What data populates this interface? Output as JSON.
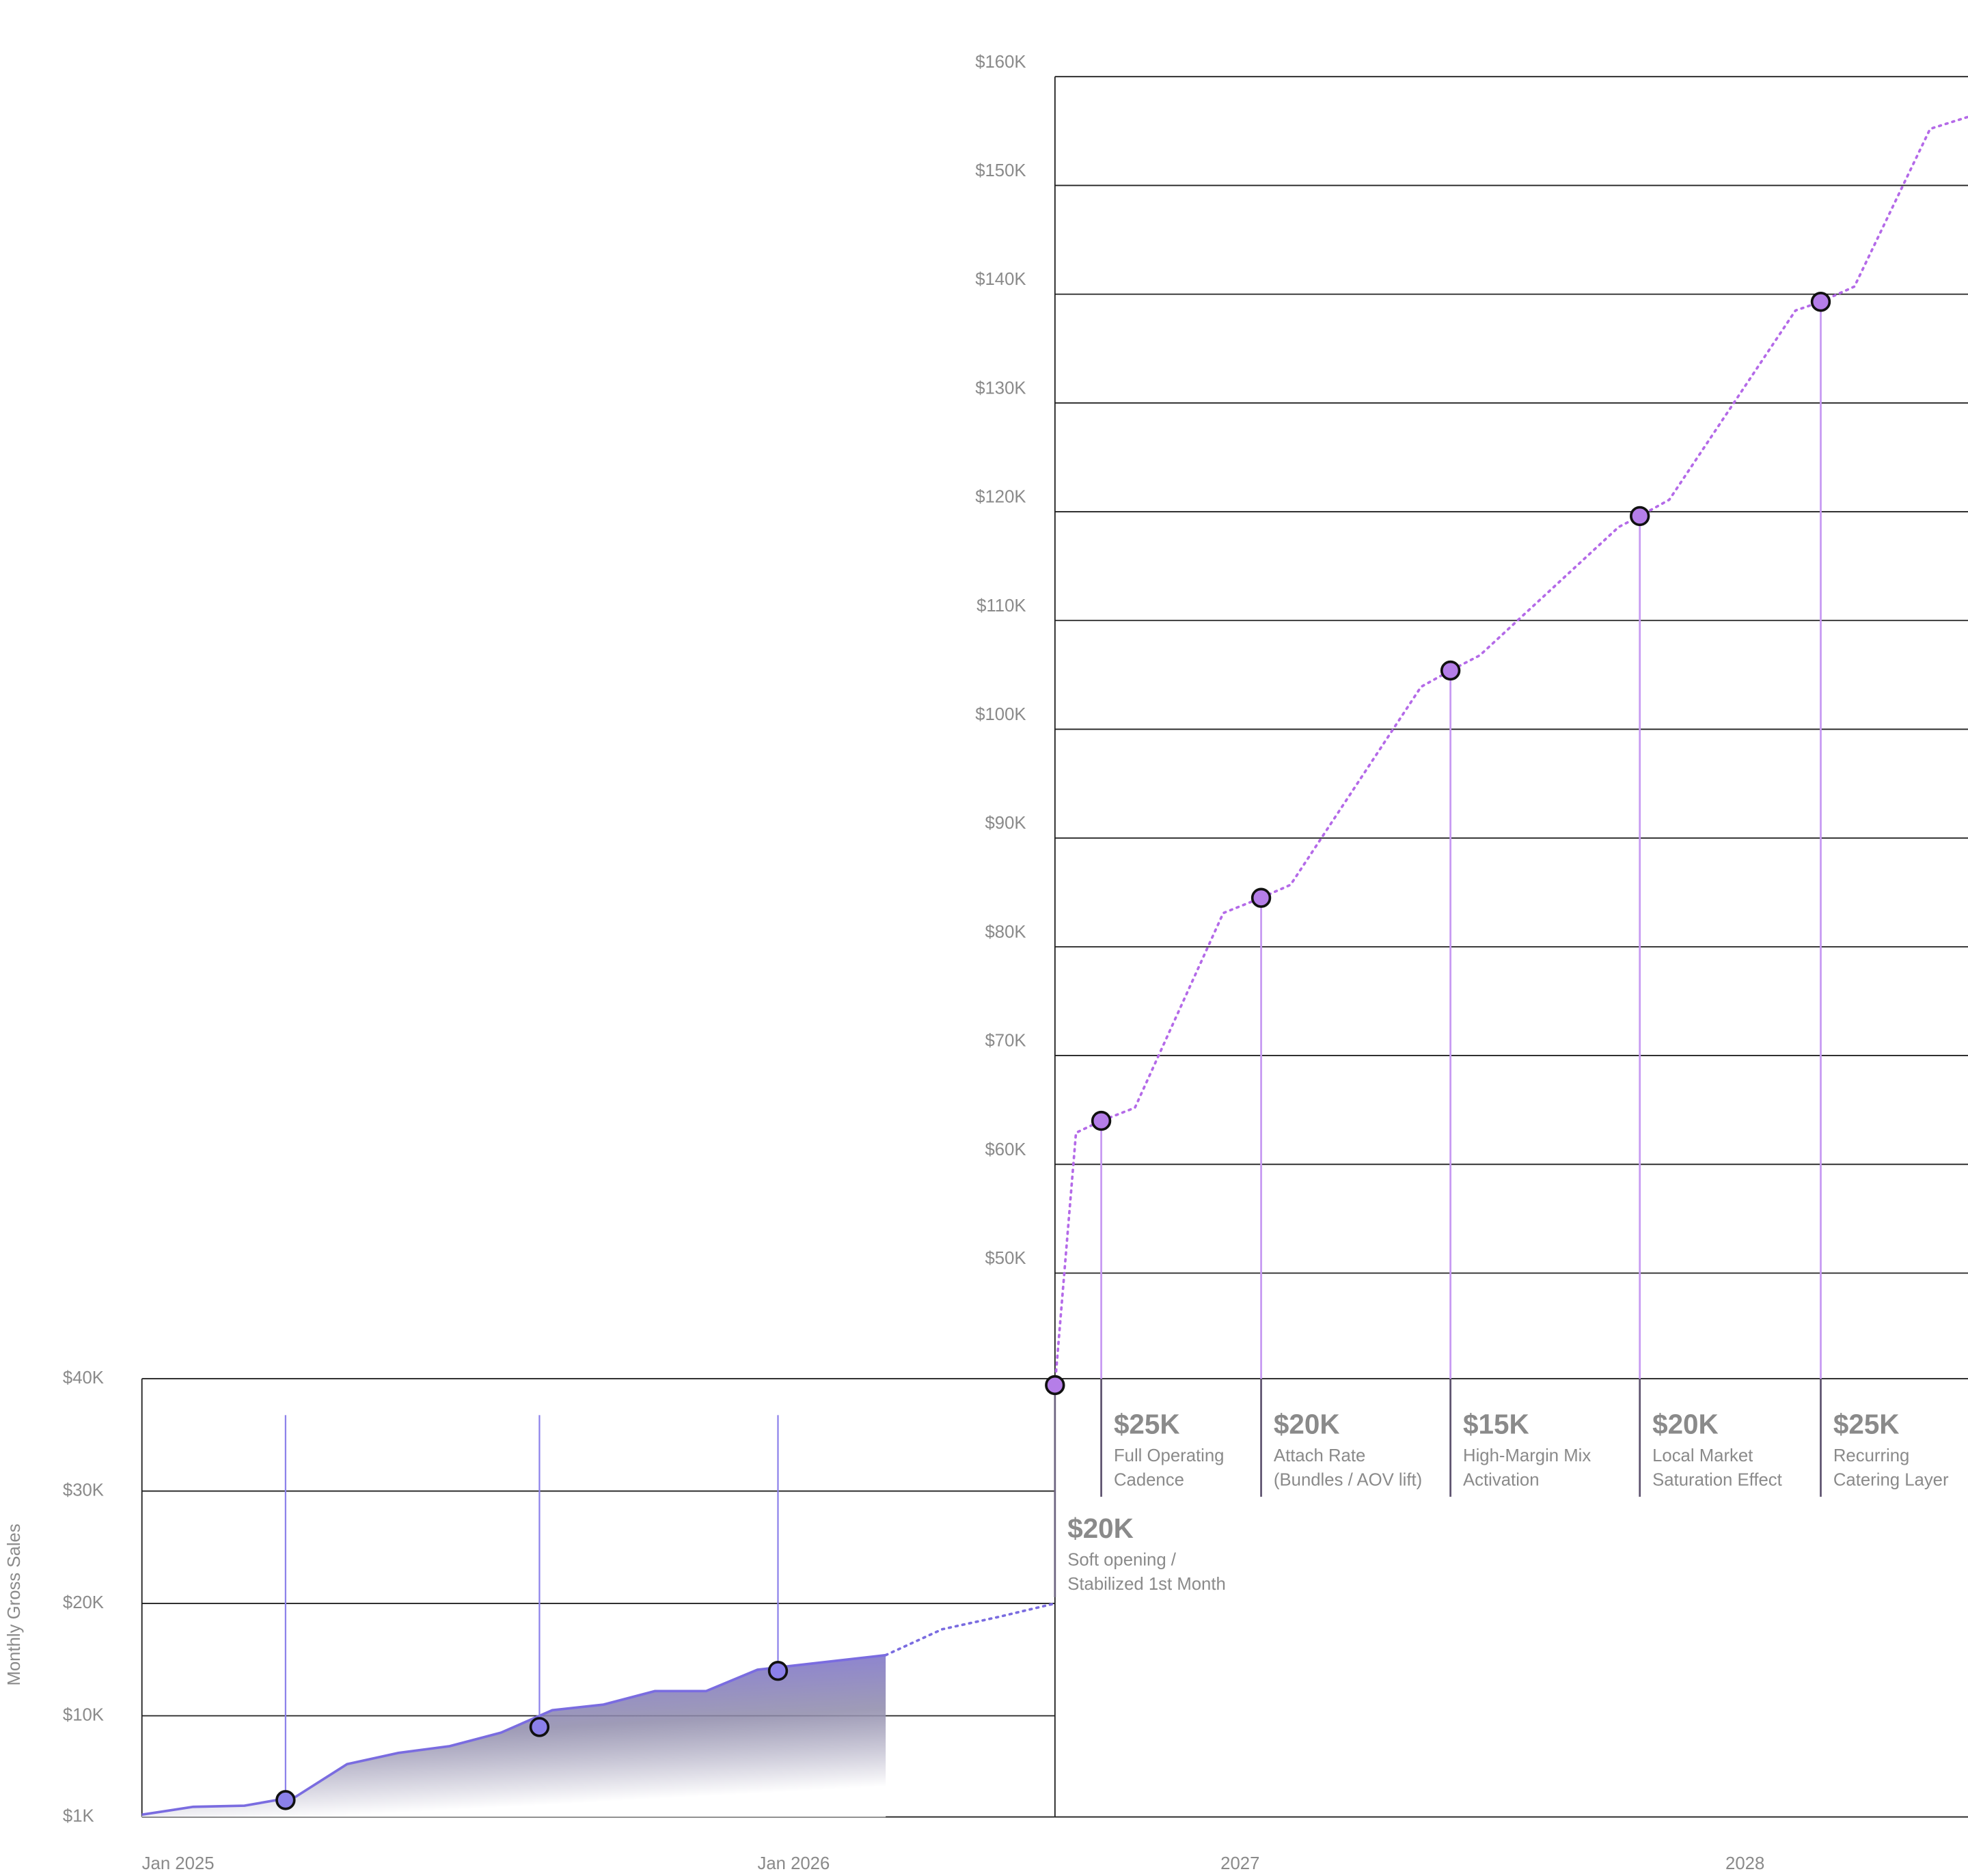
{
  "chart_data": [
    {
      "type": "area",
      "y_label": "Monthly Gross Sales",
      "xlim": [
        0,
        17.8
      ],
      "ylim": [
        1000,
        40000
      ],
      "xticks": [
        {
          "value": 0,
          "label": "Jan 2025"
        },
        {
          "value": 12,
          "label": "Jan 2026"
        }
      ],
      "yticks": [
        {
          "value": 1000,
          "label": "$1K"
        },
        {
          "value": 10000,
          "label": "$10K"
        },
        {
          "value": 20000,
          "label": "$20K"
        },
        {
          "value": 30000,
          "label": "$30K"
        },
        {
          "value": 40000,
          "label": "$40K"
        }
      ],
      "grid": true,
      "series": [
        {
          "style": "area",
          "color": "#7a6ce0",
          "x": [
            0,
            1,
            2,
            3,
            4,
            5,
            6,
            7,
            8,
            9,
            10,
            11,
            12,
            14.5
          ],
          "values": [
            1200,
            1900,
            2000,
            2800,
            5700,
            6700,
            7300,
            8500,
            10500,
            11000,
            12200,
            12200,
            14100,
            15400
          ]
        },
        {
          "style": "dotted",
          "color": "#7a6ce0",
          "x": [
            14.5,
            15.6,
            16.7,
            17.8
          ],
          "values": [
            15400,
            17700,
            18800,
            20000
          ]
        },
        {
          "style": "markers",
          "color": "#8b80ea",
          "x": [
            2.8,
            7.75,
            12.4
          ],
          "values": [
            2500,
            9000,
            14000
          ]
        }
      ]
    },
    {
      "type": "line",
      "xlim": [
        19.6,
        41.3
      ],
      "ylim": [
        0,
        160000
      ],
      "xticks": [
        {
          "value": 24,
          "label": "2027"
        },
        {
          "value": 36,
          "label": "2028"
        }
      ],
      "yticks": [
        {
          "value": 50000,
          "label": "$50K"
        },
        {
          "value": 60000,
          "label": "$60K"
        },
        {
          "value": 70000,
          "label": "$70K"
        },
        {
          "value": 80000,
          "label": "$80K"
        },
        {
          "value": 90000,
          "label": "$90K"
        },
        {
          "value": 100000,
          "label": "$100K"
        },
        {
          "value": 110000,
          "label": "$110K"
        },
        {
          "value": 120000,
          "label": "$120K"
        },
        {
          "value": 130000,
          "label": "$130K"
        },
        {
          "value": 140000,
          "label": "$140K"
        },
        {
          "value": 150000,
          "label": "$150K"
        },
        {
          "value": 160000,
          "label": "$160K"
        }
      ],
      "grid": true,
      "series": [
        {
          "style": "dotted",
          "color": "#b46ae8",
          "x": [
            19.6,
            20.1,
            20.7,
            21.5,
            23.6,
            24.5,
            25.2,
            28.3,
            29.0,
            29.7,
            33.0,
            33.5,
            34.2,
            37.2,
            37.8,
            38.6,
            40.4,
            41.3
          ],
          "values": [
            39700,
            62900,
            64000,
            65200,
            83100,
            84500,
            85700,
            103900,
            105400,
            106800,
            118600,
            119600,
            121100,
            138500,
            139300,
            140700,
            155200,
            156300
          ]
        },
        {
          "style": "markers",
          "color": "#b57ee8",
          "x": [
            19.6,
            20.7,
            24.5,
            29.0,
            33.5,
            37.8
          ],
          "values": [
            39700,
            64000,
            84500,
            105400,
            119600,
            139300
          ]
        }
      ],
      "annotations": [
        {
          "value": "$20K",
          "lines": [
            "Soft opening /",
            "Stabilized 1st Month"
          ]
        },
        {
          "value": "$25K",
          "lines": [
            "Full Operating",
            "Cadence"
          ]
        },
        {
          "value": "$20K",
          "lines": [
            "Attach Rate",
            "(Bundles / AOV lift)"
          ]
        },
        {
          "value": "$15K",
          "lines": [
            "High-Margin Mix",
            "Activation"
          ]
        },
        {
          "value": "$20K",
          "lines": [
            "Local Market",
            "Saturation Effect"
          ]
        },
        {
          "value": "$25K",
          "lines": [
            "Recurring",
            "Catering Layer"
          ]
        }
      ]
    }
  ]
}
